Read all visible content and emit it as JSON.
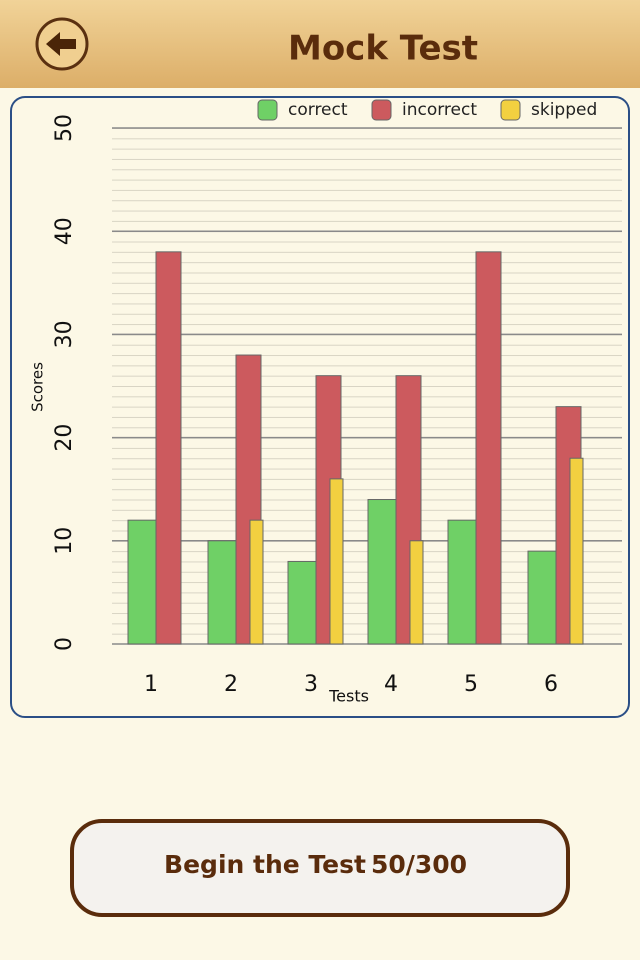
{
  "header": {
    "title": "Mock Test"
  },
  "chart_data": {
    "type": "bar",
    "categories": [
      "1",
      "2",
      "3",
      "4",
      "5",
      "6"
    ],
    "series": [
      {
        "name": "correct",
        "color": "#6fd066",
        "values": [
          12,
          10,
          8,
          14,
          12,
          9
        ]
      },
      {
        "name": "incorrect",
        "color": "#cc5a5e",
        "values": [
          38,
          28,
          26,
          26,
          38,
          23
        ]
      },
      {
        "name": "skipped",
        "color": "#f2d040",
        "values": [
          0,
          12,
          16,
          10,
          0,
          18
        ]
      }
    ],
    "x_label": "Tests",
    "y_label": "Scores",
    "ylim": [
      0,
      50
    ],
    "yticks": [
      0,
      10,
      20,
      30,
      40,
      50
    ],
    "grid": true,
    "legend": "top"
  },
  "button": {
    "label": "Begin the Test",
    "progress": "50/300"
  }
}
